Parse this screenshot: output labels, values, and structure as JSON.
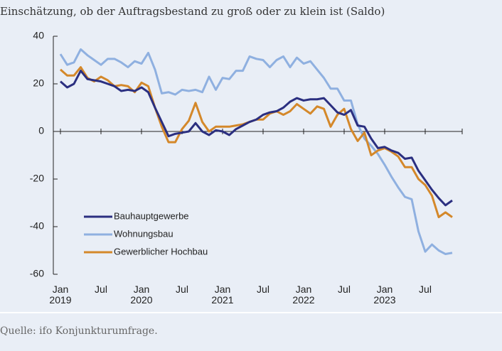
{
  "chart_data": {
    "type": "line",
    "subtitle": "Einschätzung, ob der Auftragsbestand zu groß oder zu klein ist (Saldo)",
    "source": "Quelle: ifo Konjunkturumfrage.",
    "categories": [
      "Jan\n2019",
      null,
      null,
      null,
      null,
      null,
      "Jul",
      null,
      null,
      null,
      null,
      null,
      "Jan\n2020",
      null,
      null,
      null,
      null,
      null,
      "Jul",
      null,
      null,
      null,
      null,
      null,
      "Jan\n2021",
      null,
      null,
      null,
      null,
      null,
      "Jul",
      null,
      null,
      null,
      null,
      null,
      "Jan\n2022",
      null,
      null,
      null,
      null,
      null,
      "Jul",
      null,
      null,
      null,
      null,
      null,
      "Jan\n2023",
      null,
      null,
      null,
      null,
      null,
      "Jul",
      null,
      null,
      null,
      null
    ],
    "series": [
      {
        "name": "Bauhauptgewerbe",
        "color": "#2b2f80",
        "values": [
          21,
          18.5,
          20,
          25.5,
          22,
          21.5,
          21,
          20,
          19,
          17,
          17.5,
          17,
          18.5,
          16.5,
          10,
          4,
          -2,
          -1,
          -0.5,
          0,
          3.5,
          0,
          -1.5,
          0.5,
          0,
          -1.5,
          1,
          2.5,
          4,
          5,
          7,
          8,
          8.5,
          10,
          12.5,
          14,
          13,
          13.5,
          13.5,
          14,
          11,
          8,
          7,
          9,
          2.5,
          2,
          -3,
          -7,
          -6.5,
          -8,
          -9,
          -11.5,
          -11,
          -16.5,
          -20.5,
          -24.5,
          -28,
          -31,
          -29
        ]
      },
      {
        "name": "Wohnungsbau",
        "color": "#8fb0e0",
        "values": [
          32.5,
          28,
          29,
          34.5,
          32,
          30,
          28,
          30.5,
          30.5,
          29,
          27,
          29.5,
          28.5,
          33,
          26,
          16,
          16.5,
          15.5,
          17.5,
          17,
          17.5,
          16.5,
          23,
          17.5,
          22.5,
          22,
          25.5,
          25.5,
          31.5,
          30.5,
          30,
          27,
          30,
          31.5,
          27,
          31,
          28.5,
          29.5,
          26,
          22.5,
          18,
          18,
          13,
          13,
          3,
          -3,
          -6,
          -9.5,
          -14,
          -19,
          -23.5,
          -27.5,
          -28.5,
          -42,
          -50.5,
          -47.5,
          -50,
          -51.5,
          -51
        ]
      },
      {
        "name": "Gewerblicher Hochbau",
        "color": "#d4882a",
        "values": [
          26,
          23.5,
          23.5,
          27,
          22.5,
          21,
          23,
          21.5,
          19,
          19.5,
          19,
          16.5,
          20.5,
          19,
          10,
          2,
          -4.5,
          -4.5,
          1,
          4.5,
          12,
          4,
          0,
          2,
          2,
          2,
          2.5,
          3,
          4,
          5,
          5,
          7.5,
          8.5,
          7,
          8.5,
          11.5,
          9.5,
          7.5,
          10.5,
          9.5,
          2,
          7,
          9.5,
          1,
          -4,
          -0.5,
          -10,
          -8,
          -7,
          -8.5,
          -10.5,
          -15,
          -15,
          -20,
          -22.5,
          -27,
          -36,
          -34,
          -36
        ]
      }
    ],
    "ylim": [
      -60,
      40
    ],
    "yticks": [
      -60,
      -40,
      -20,
      0,
      20,
      40
    ],
    "legend": "lower left"
  }
}
